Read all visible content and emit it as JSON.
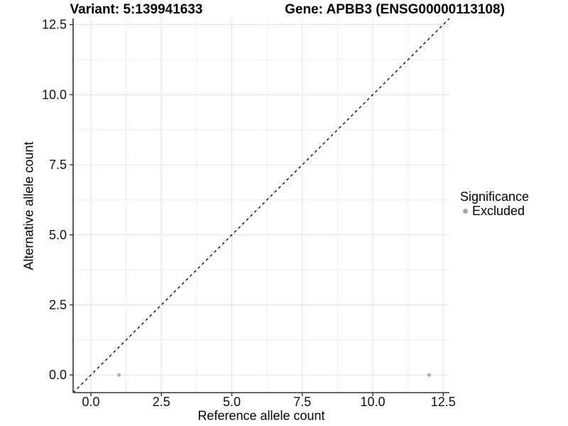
{
  "titles": {
    "variant": "Variant: 5:139941633",
    "gene": "Gene: APBB3 (ENSG00000113108)"
  },
  "chart_data": {
    "type": "scatter",
    "xlabel": "Reference allele count",
    "ylabel": "Alternative allele count",
    "xlim": [
      -0.63,
      12.72
    ],
    "ylim": [
      -0.63,
      12.72
    ],
    "xticks": [
      0,
      2.5,
      5,
      7.5,
      10,
      12.5
    ],
    "xtick_labels": [
      "0.0",
      "2.5",
      "5.0",
      "7.5",
      "10.0",
      "12.5"
    ],
    "yticks": [
      0,
      2.5,
      5,
      7.5,
      10,
      12.5
    ],
    "ytick_labels": [
      "0.0",
      "2.5",
      "5.0",
      "7.5",
      "10.0",
      "12.5"
    ],
    "minor_ticks": [
      1.25,
      3.75,
      6.25,
      8.75,
      11.25
    ],
    "grid": true,
    "identity_line": {
      "type": "y=x",
      "style": "dashed",
      "color": "#000000"
    },
    "series": [
      {
        "name": "Excluded",
        "color": "#b0b0b0",
        "points": [
          [
            1,
            0
          ],
          [
            12,
            0
          ]
        ]
      }
    ],
    "legend": {
      "title": "Significance",
      "position": "right",
      "items": [
        {
          "label": "Excluded",
          "color": "#a8a8a8"
        }
      ]
    },
    "colors": {
      "axis_line": "#333333",
      "grid_major": "#e2e2e2",
      "grid_minor": "#eeeeee",
      "tick_text": "#111111"
    }
  }
}
